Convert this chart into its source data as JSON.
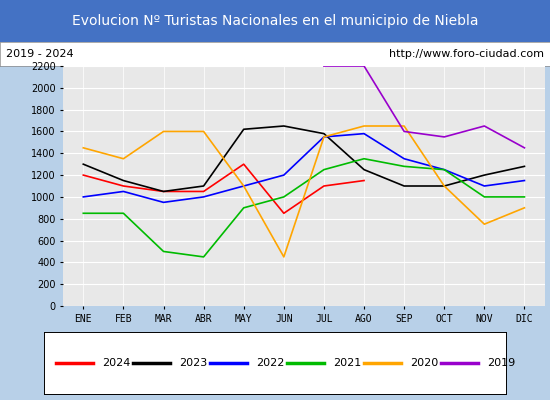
{
  "title": "Evolucion Nº Turistas Nacionales en el municipio de Niebla",
  "subtitle_left": "2019 - 2024",
  "subtitle_right": "http://www.foro-ciudad.com",
  "title_bg_color": "#4472C4",
  "title_text_color": "white",
  "plot_bg_color": "#E8E8E8",
  "outer_bg_color": "#B8D0E8",
  "months": [
    "ENE",
    "FEB",
    "MAR",
    "ABR",
    "MAY",
    "JUN",
    "JUL",
    "AGO",
    "SEP",
    "OCT",
    "NOV",
    "DIC"
  ],
  "ylim": [
    0,
    2200
  ],
  "yticks": [
    0,
    200,
    400,
    600,
    800,
    1000,
    1200,
    1400,
    1600,
    1800,
    2000,
    2200
  ],
  "series": {
    "2024": {
      "color": "#FF0000",
      "data": [
        1200,
        1100,
        1050,
        1050,
        1300,
        850,
        1100,
        1150,
        null,
        null,
        null,
        null
      ]
    },
    "2023": {
      "color": "#000000",
      "data": [
        1300,
        1150,
        1050,
        1100,
        1620,
        1650,
        1580,
        1250,
        1100,
        1100,
        1200,
        1280
      ]
    },
    "2022": {
      "color": "#0000FF",
      "data": [
        1000,
        1050,
        950,
        1000,
        1100,
        1200,
        1550,
        1580,
        1350,
        1250,
        1100,
        1150
      ]
    },
    "2021": {
      "color": "#00BB00",
      "data": [
        850,
        850,
        500,
        450,
        900,
        1000,
        1250,
        1350,
        1280,
        1250,
        1000,
        1000
      ]
    },
    "2020": {
      "color": "#FFA500",
      "data": [
        1450,
        1350,
        1600,
        1600,
        1100,
        450,
        1550,
        1650,
        1650,
        1100,
        750,
        900
      ]
    },
    "2019": {
      "color": "#9900CC",
      "data": [
        null,
        null,
        null,
        null,
        null,
        null,
        2200,
        2200,
        1600,
        1550,
        1650,
        1450
      ]
    }
  },
  "legend_order": [
    "2024",
    "2023",
    "2022",
    "2021",
    "2020",
    "2019"
  ]
}
